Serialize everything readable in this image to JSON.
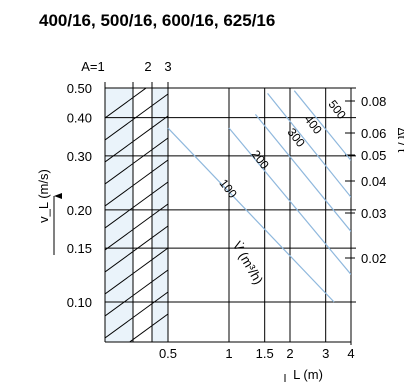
{
  "header": {
    "title": "400/16, 500/16, 600/16, 625/16"
  },
  "chart_data": {
    "type": "line",
    "xlabel": "L (m)",
    "ylabel": "v_L (m/s)",
    "y2label": "Δt / t",
    "x_ticks": [
      {
        "value": 0.5,
        "label": "0.5"
      },
      {
        "value": 1,
        "label": "1"
      },
      {
        "value": 1.5,
        "label": "1.5"
      },
      {
        "value": 2,
        "label": "2"
      },
      {
        "value": 3,
        "label": "3"
      },
      {
        "value": 4,
        "label": "4"
      }
    ],
    "y_ticks": [
      {
        "value": 0.1,
        "label": "0.10"
      },
      {
        "value": 0.15,
        "label": "0.15"
      },
      {
        "value": 0.2,
        "label": "0.20"
      },
      {
        "value": 0.3,
        "label": "0.30"
      },
      {
        "value": 0.4,
        "label": "0.40"
      },
      {
        "value": 0.5,
        "label": "0.50"
      }
    ],
    "y2_ticks": [
      {
        "value": 0.02,
        "label": "0.02"
      },
      {
        "value": 0.03,
        "label": "0.03"
      },
      {
        "value": 0.04,
        "label": "0.04"
      },
      {
        "value": 0.05,
        "label": "0.05"
      },
      {
        "value": 0.06,
        "label": "0.06"
      },
      {
        "value": 0.08,
        "label": "0.08"
      }
    ],
    "zone_labels": [
      "A=1",
      "2",
      "3"
    ],
    "flow_label": "V̇ (m³/h)",
    "series": [
      {
        "name": "100",
        "points": [
          [
            0.5,
            0.37
          ],
          [
            3.3,
            0.1
          ]
        ]
      },
      {
        "name": "200",
        "points": [
          [
            1.0,
            0.37
          ],
          [
            4.0,
            0.123
          ]
        ]
      },
      {
        "name": "300",
        "points": [
          [
            1.35,
            0.41
          ],
          [
            4.0,
            0.17
          ]
        ]
      },
      {
        "name": "400",
        "points": [
          [
            1.55,
            0.48
          ],
          [
            4.0,
            0.22
          ]
        ]
      },
      {
        "name": "500",
        "points": [
          [
            2.1,
            0.49
          ],
          [
            4.0,
            0.29
          ]
        ]
      }
    ],
    "colors": {
      "curve": "#8fb8dd",
      "zone_fill": "#eaf3fa",
      "grid": "#000000"
    }
  }
}
